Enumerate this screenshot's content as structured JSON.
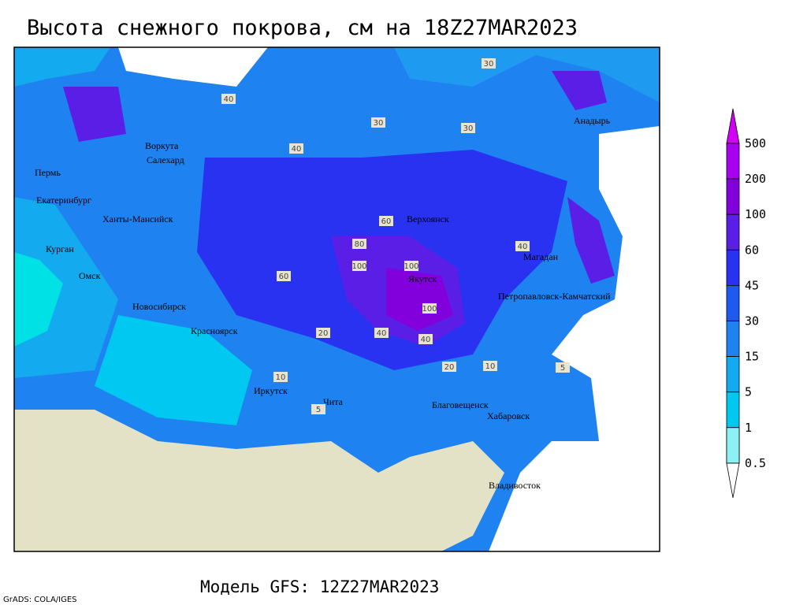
{
  "title": "Высота снежного покрова, см на 18Z27MAR2023",
  "footer": "Модель GFS: 12Z27MAR2023",
  "credit": "GrADS: COLA/IGES",
  "legend": [
    {
      "label": 500,
      "color": "#a800f0"
    },
    {
      "label": 200,
      "color": "#8200dc"
    },
    {
      "label": 100,
      "color": "#5a1ee6"
    },
    {
      "label": 60,
      "color": "#2832f0"
    },
    {
      "label": 45,
      "color": "#1e5af0"
    },
    {
      "label": 30,
      "color": "#1e82f0"
    },
    {
      "label": 15,
      "color": "#14aaf0"
    },
    {
      "label": 5,
      "color": "#00c8f0"
    },
    {
      "label": 1,
      "color": "#00e1e6"
    },
    {
      "label": 0.5,
      "color": "#8cf0f5"
    }
  ],
  "legend_top_color": "#d200f5",
  "legend_bottom_color": "#ffffff",
  "cities": [
    "Воркута",
    "Салехард",
    "Пермь",
    "Екатеринбург",
    "Ханты-Мансийск",
    "Курган",
    "Омск",
    "Новосибирск",
    "Красноярск",
    "Иркутск",
    "Чита",
    "Верхоянск",
    "Якутск",
    "Магадан",
    "Анадырь",
    "Петропавловск-Камчатский",
    "Благовещенск",
    "Хабаровск",
    "Владивосток"
  ],
  "contour_labels": [
    30,
    40,
    60,
    80,
    100,
    100,
    40,
    20,
    10,
    5,
    30,
    40,
    60,
    100,
    40,
    20,
    10,
    5,
    40,
    30
  ]
}
